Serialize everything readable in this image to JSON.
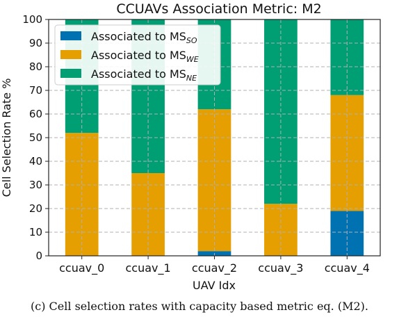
{
  "chart_data": {
    "type": "bar",
    "stacked": true,
    "title": "CCUAVs Association Metric: M2",
    "xlabel": "UAV Idx",
    "ylabel": "Cell Selection Rate %",
    "ylim": [
      0,
      100
    ],
    "yticks": [
      "0",
      "10",
      "20",
      "30",
      "40",
      "50",
      "60",
      "70",
      "80",
      "90",
      "100"
    ],
    "grid": true,
    "legend_position": "top-left",
    "categories": [
      "ccuav_0",
      "ccuav_1",
      "ccuav_2",
      "ccuav_3",
      "ccuav_4"
    ],
    "series": [
      {
        "name": "Associated to MS",
        "subscript": "SO",
        "color": "#0072B2",
        "values": [
          0,
          0,
          2,
          0,
          19
        ]
      },
      {
        "name": "Associated to MS",
        "subscript": "WE",
        "color": "#E69F00",
        "values": [
          52,
          35,
          60,
          22,
          49
        ]
      },
      {
        "name": "Associated to MS",
        "subscript": "NE",
        "color": "#009E73",
        "values": [
          48,
          65,
          38,
          78,
          32
        ]
      }
    ]
  },
  "caption": "(c)  Cell selection rates with capacity based metric eq. (M2)."
}
